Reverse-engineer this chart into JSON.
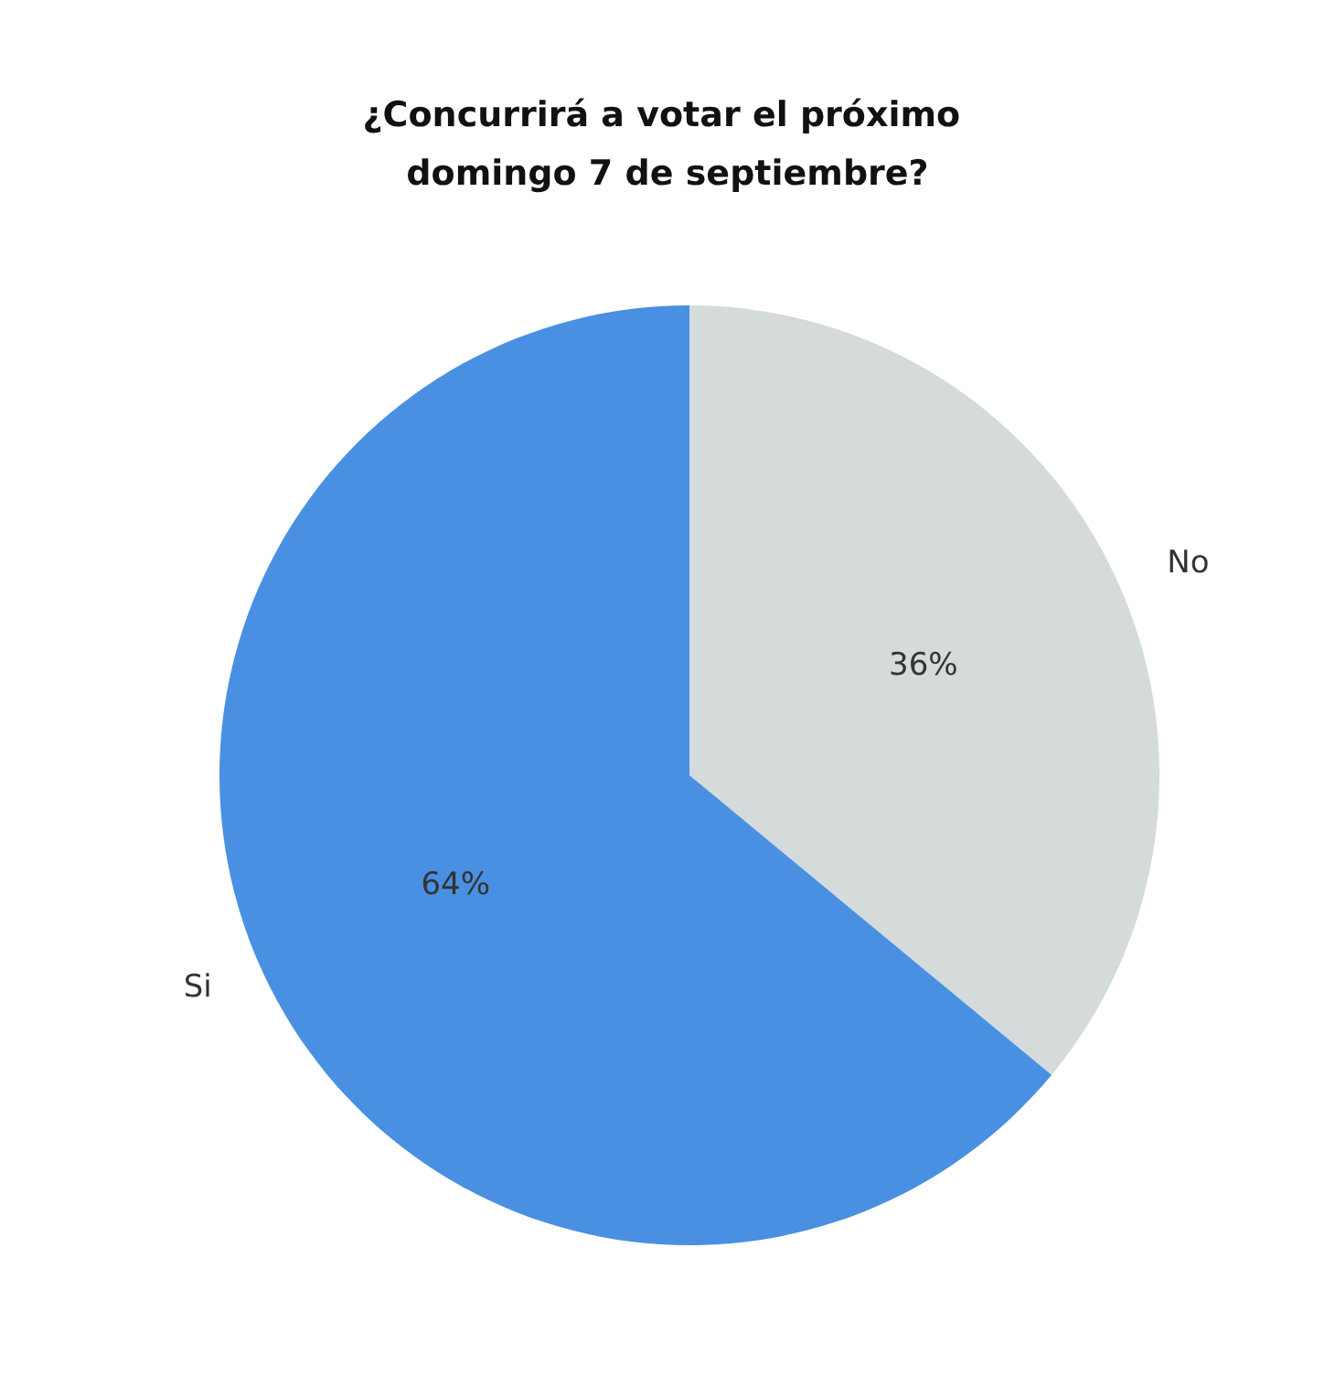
{
  "chart_data": {
    "type": "pie",
    "title": "¿Concurrirá a votar el próximo domingo 7 de septiembre?",
    "categories": [
      "No",
      "Si"
    ],
    "values": [
      36,
      64
    ],
    "colors": [
      "#d5dadb",
      "#4a90e2"
    ],
    "value_labels": [
      "36%",
      "64%"
    ]
  }
}
